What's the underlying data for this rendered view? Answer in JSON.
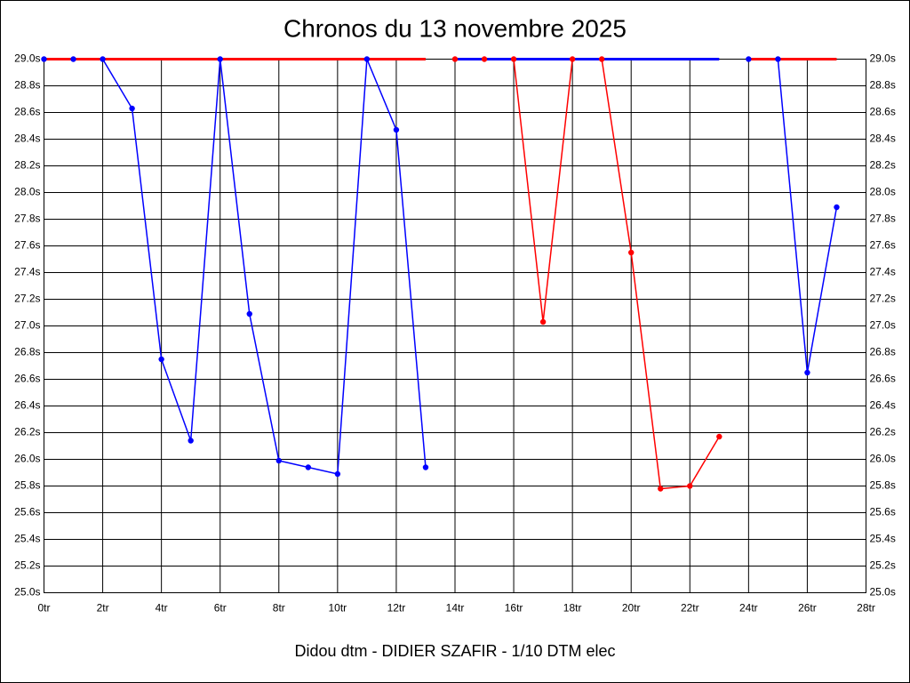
{
  "chart_data": {
    "type": "line",
    "title": "Chronos du 13 novembre 2025",
    "x_label": "Didou dtm - DIDIER SZAFIR - 1/10 DTM elec",
    "x": [
      0,
      1,
      2,
      3,
      4,
      5,
      6,
      7,
      8,
      9,
      10,
      11,
      12,
      13,
      14,
      15,
      16,
      17,
      18,
      19,
      20,
      21,
      22,
      23,
      24,
      25,
      26,
      27
    ],
    "series": [
      {
        "color": "#0000ff",
        "markers": true,
        "values": [
          29.0,
          29.0,
          29.0,
          28.63,
          26.75,
          26.14,
          29.0,
          27.09,
          25.99,
          25.94,
          25.89,
          29.0,
          28.47,
          25.94,
          null,
          null,
          null,
          null,
          null,
          null,
          null,
          null,
          null,
          null,
          null,
          null,
          null,
          null
        ]
      },
      {
        "color": "#ff0000",
        "markers": true,
        "values": [
          null,
          null,
          null,
          null,
          null,
          null,
          null,
          null,
          null,
          null,
          null,
          null,
          null,
          null,
          29.0,
          29.0,
          29.0,
          27.03,
          29.0,
          29.0,
          27.55,
          25.78,
          25.8,
          26.17,
          null,
          null,
          null,
          null
        ]
      },
      {
        "color": "#0000ff",
        "markers": true,
        "values": [
          null,
          null,
          null,
          null,
          null,
          null,
          null,
          null,
          null,
          null,
          null,
          null,
          null,
          null,
          null,
          null,
          null,
          null,
          null,
          null,
          null,
          null,
          null,
          null,
          29.0,
          29.0,
          26.65,
          27.89
        ]
      },
      {
        "color": "#ff0000",
        "markers": false,
        "values": [
          29.0,
          29.0,
          29.0,
          29.0,
          29.0,
          29.0,
          29.0,
          29.0,
          29.0,
          29.0,
          29.0,
          29.0,
          29.0,
          29.0,
          null,
          null,
          null,
          null,
          null,
          null,
          null,
          null,
          null,
          null,
          29.0,
          29.0,
          29.0,
          29.0
        ]
      },
      {
        "color": "#0000ff",
        "markers": false,
        "values": [
          null,
          null,
          null,
          null,
          null,
          null,
          null,
          null,
          null,
          null,
          null,
          null,
          null,
          null,
          29.0,
          29.0,
          29.0,
          29.0,
          29.0,
          29.0,
          29.0,
          29.0,
          29.0,
          29.0,
          null,
          null,
          null,
          null
        ]
      }
    ],
    "xlim": [
      0,
      28
    ],
    "xticks": [
      {
        "value": 0,
        "label": "0tr"
      },
      {
        "value": 2,
        "label": "2tr"
      },
      {
        "value": 4,
        "label": "4tr"
      },
      {
        "value": 6,
        "label": "6tr"
      },
      {
        "value": 8,
        "label": "8tr"
      },
      {
        "value": 10,
        "label": "10tr"
      },
      {
        "value": 12,
        "label": "12tr"
      },
      {
        "value": 14,
        "label": "14tr"
      },
      {
        "value": 16,
        "label": "16tr"
      },
      {
        "value": 18,
        "label": "18tr"
      },
      {
        "value": 20,
        "label": "20tr"
      },
      {
        "value": 22,
        "label": "22tr"
      },
      {
        "value": 24,
        "label": "24tr"
      },
      {
        "value": 26,
        "label": "26tr"
      },
      {
        "value": 28,
        "label": "28tr"
      }
    ],
    "ylim": [
      25.0,
      29.0
    ],
    "yticks": [
      {
        "value": 25.0,
        "label": "25.0s"
      },
      {
        "value": 25.2,
        "label": "25.2s"
      },
      {
        "value": 25.4,
        "label": "25.4s"
      },
      {
        "value": 25.6,
        "label": "25.6s"
      },
      {
        "value": 25.8,
        "label": "25.8s"
      },
      {
        "value": 26.0,
        "label": "26.0s"
      },
      {
        "value": 26.2,
        "label": "26.2s"
      },
      {
        "value": 26.4,
        "label": "26.4s"
      },
      {
        "value": 26.6,
        "label": "26.6s"
      },
      {
        "value": 26.8,
        "label": "26.8s"
      },
      {
        "value": 27.0,
        "label": "27.0s"
      },
      {
        "value": 27.2,
        "label": "27.2s"
      },
      {
        "value": 27.4,
        "label": "27.4s"
      },
      {
        "value": 27.6,
        "label": "27.6s"
      },
      {
        "value": 27.8,
        "label": "27.8s"
      },
      {
        "value": 28.0,
        "label": "28.0s"
      },
      {
        "value": 28.2,
        "label": "28.2s"
      },
      {
        "value": 28.4,
        "label": "28.4s"
      },
      {
        "value": 28.6,
        "label": "28.6s"
      },
      {
        "value": 28.8,
        "label": "28.8s"
      },
      {
        "value": 29.0,
        "label": "29.0s"
      }
    ],
    "grid": true
  }
}
